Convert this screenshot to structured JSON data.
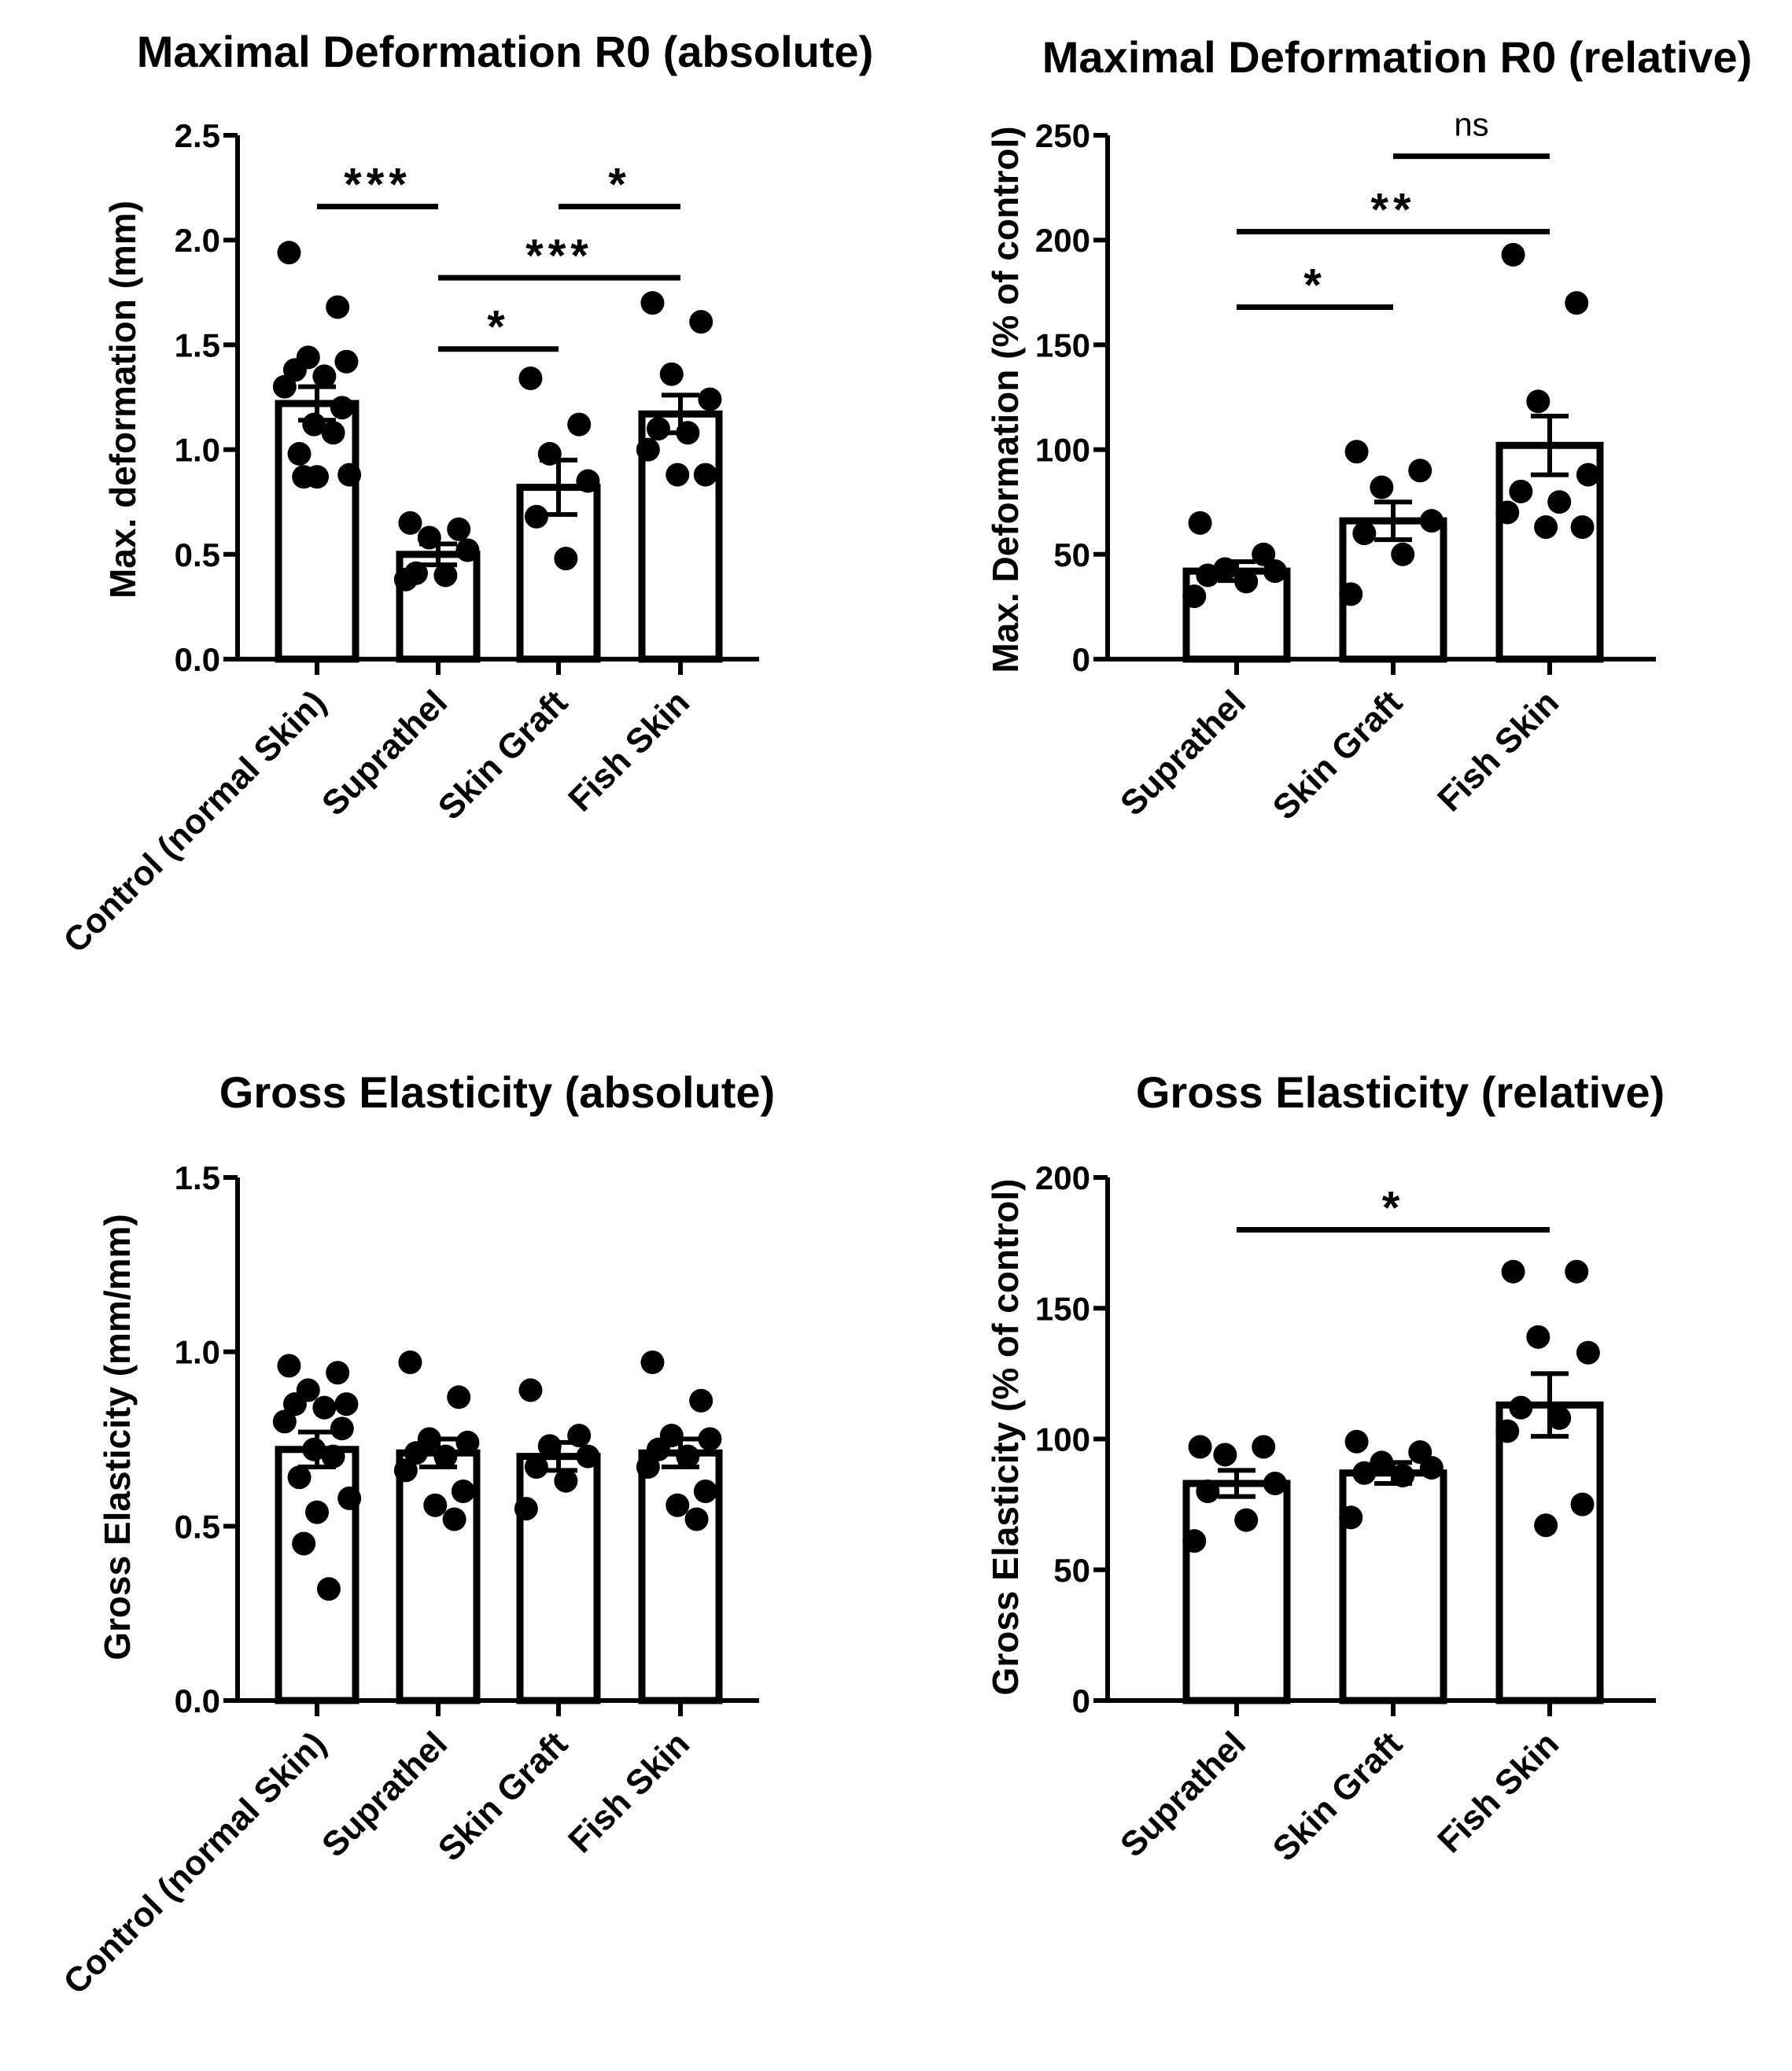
{
  "chart_data": [
    {
      "type": "bar",
      "title": "Maximal Deformation R0 (absolute)",
      "xlabel": "",
      "ylabel": "Max. deformation (mm)",
      "ylim": [
        0,
        2.5
      ],
      "yticks": [
        0.0,
        0.5,
        1.0,
        1.5,
        2.0,
        2.5
      ],
      "ytick_labels": [
        "0.0",
        "0.5",
        "1.0",
        "1.5",
        "2.0",
        "2.5"
      ],
      "categories": [
        "Control (normal Skin)",
        "Suprathel",
        "Skin Graft",
        "Fish Skin"
      ],
      "values": [
        1.22,
        0.5,
        0.82,
        1.17
      ],
      "errors": [
        0.08,
        0.05,
        0.13,
        0.09
      ],
      "points": [
        [
          1.94,
          1.68,
          1.44,
          1.42,
          1.38,
          1.35,
          1.3,
          1.2,
          1.12,
          1.08,
          0.98,
          0.88,
          0.87,
          0.87
        ],
        [
          0.65,
          0.62,
          0.58,
          0.52,
          0.41,
          0.4,
          0.38
        ],
        [
          1.34,
          1.12,
          0.98,
          0.85,
          0.68,
          0.48
        ],
        [
          1.7,
          1.61,
          1.36,
          1.24,
          1.1,
          1.08,
          1.0,
          0.88,
          0.88
        ]
      ],
      "significance": [
        {
          "from": 0,
          "to": 1,
          "label": "***",
          "y": 2.16
        },
        {
          "from": 2,
          "to": 3,
          "label": "*",
          "y": 2.16
        },
        {
          "from": 1,
          "to": 3,
          "label": "***",
          "y": 1.82
        },
        {
          "from": 1,
          "to": 2,
          "label": "*",
          "y": 1.48
        }
      ]
    },
    {
      "type": "bar",
      "title": "Maximal Deformation R0 (relative)",
      "xlabel": "",
      "ylabel": "Max. Deformation (% of control)",
      "ylim": [
        0,
        250
      ],
      "yticks": [
        0,
        50,
        100,
        150,
        200,
        250
      ],
      "ytick_labels": [
        "0",
        "50",
        "100",
        "150",
        "200",
        "250"
      ],
      "categories": [
        "Suprathel",
        "Skin Graft",
        "Fish Skin"
      ],
      "values": [
        42,
        66,
        102
      ],
      "errors": [
        4.5,
        9,
        14
      ],
      "points": [
        [
          65,
          50,
          43,
          42,
          40,
          37,
          30
        ],
        [
          99,
          90,
          82,
          66,
          60,
          50,
          31
        ],
        [
          193,
          170,
          123,
          88,
          80,
          75,
          70,
          63,
          63
        ]
      ],
      "significance": [
        {
          "from": 1,
          "to": 2,
          "label": "ns",
          "y": 240
        },
        {
          "from": 0,
          "to": 2,
          "label": "**",
          "y": 204
        },
        {
          "from": 0,
          "to": 1,
          "label": "*",
          "y": 168
        }
      ]
    },
    {
      "type": "bar",
      "title": "Gross Elasticity (absolute)",
      "xlabel": "",
      "ylabel": "Gross Elasticity (mm/mm)",
      "ylim": [
        0,
        1.5
      ],
      "yticks": [
        0.0,
        0.5,
        1.0,
        1.5
      ],
      "ytick_labels": [
        "0.0",
        "0.5",
        "1.0",
        "1.5"
      ],
      "categories": [
        "Control (normal Skin)",
        "Suprathel",
        "Skin Graft",
        "Fish Skin"
      ],
      "values": [
        0.72,
        0.71,
        0.7,
        0.71
      ],
      "errors": [
        0.05,
        0.04,
        0.04,
        0.04
      ],
      "points": [
        [
          0.96,
          0.94,
          0.89,
          0.85,
          0.85,
          0.84,
          0.8,
          0.78,
          0.72,
          0.7,
          0.64,
          0.58,
          0.54,
          0.45,
          0.32
        ],
        [
          0.97,
          0.87,
          0.75,
          0.74,
          0.71,
          0.7,
          0.66,
          0.6,
          0.56,
          0.52
        ],
        [
          0.89,
          0.76,
          0.73,
          0.7,
          0.67,
          0.63,
          0.55
        ],
        [
          0.97,
          0.86,
          0.76,
          0.75,
          0.72,
          0.7,
          0.67,
          0.6,
          0.56,
          0.52
        ]
      ],
      "significance": []
    },
    {
      "type": "bar",
      "title": "Gross Elasticity (relative)",
      "xlabel": "",
      "ylabel": "Gross Elasticity (% of control)",
      "ylim": [
        0,
        200
      ],
      "yticks": [
        0,
        50,
        100,
        150,
        200
      ],
      "ytick_labels": [
        "0",
        "50",
        "100",
        "150",
        "200"
      ],
      "categories": [
        "Suprathel",
        "Skin Graft",
        "Fish Skin"
      ],
      "values": [
        83,
        87,
        113
      ],
      "errors": [
        5,
        4,
        12
      ],
      "points": [
        [
          97,
          97,
          94,
          83,
          80,
          69,
          61
        ],
        [
          99,
          95,
          91,
          89,
          87,
          86,
          70
        ],
        [
          164,
          164,
          139,
          133,
          112,
          108,
          103,
          75,
          67
        ]
      ],
      "significance": [
        {
          "from": 0,
          "to": 2,
          "label": "*",
          "y": 180
        }
      ]
    }
  ]
}
